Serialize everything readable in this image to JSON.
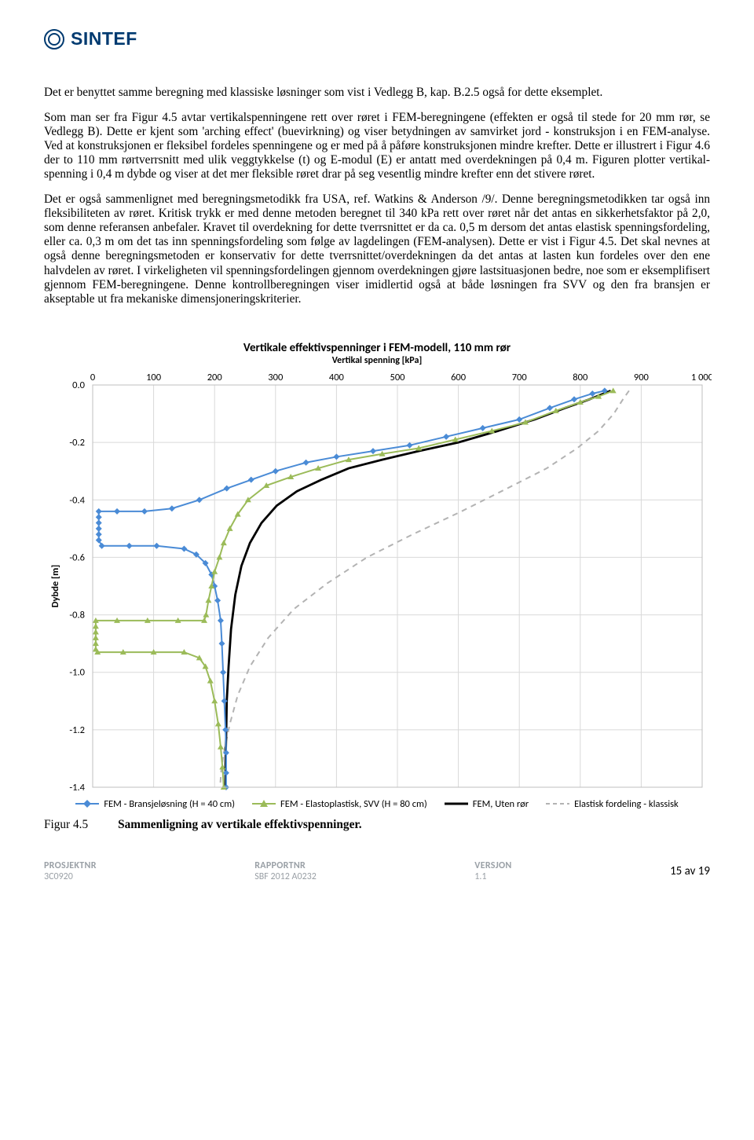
{
  "logo": {
    "text": "SINTEF",
    "color": "#003a70"
  },
  "paragraphs": {
    "p1": "Det er benyttet samme beregning med klassiske løsninger som vist i Vedlegg B, kap. B.2.5 også for dette eksemplet.",
    "p2": "Som man ser fra Figur 4.5 avtar vertikalspenningene rett over røret i FEM-beregningene (effekten er også til stede for 20 mm rør, se Vedlegg B). Dette er kjent som 'arching effect' (buevirkning) og viser betydningen av samvirket jord - konstruksjon i en FEM-analyse. Ved at konstruksjonen er fleksibel fordeles spenningene og er med på å påføre konstruksjonen mindre krefter. Dette er illustrert i Figur 4.6 der to 110 mm rørtverrsnitt med ulik veggtykkelse (t) og E-modul (E) er antatt med overdekningen på 0,4 m. Figuren plotter vertikal-spenning i 0,4 m dybde og viser at det mer fleksible røret drar på seg vesentlig mindre krefter enn det stivere røret.",
    "p3": "Det er også sammenlignet med beregningsmetodikk fra USA, ref. Watkins & Anderson /9/.  Denne beregningsmetodikken tar også inn fleksibiliteten av røret. Kritisk trykk er med denne metoden beregnet til 340 kPa rett over røret når det antas en sikkerhetsfaktor på 2,0, som denne referansen anbefaler. Kravet til overdekning for dette tverrsnittet er da ca. 0,5 m dersom det antas elastisk spenningsfordeling, eller ca. 0,3 m om det tas inn spenningsfordeling som følge av lagdelingen (FEM-analysen). Dette er vist i Figur 4.5. Det skal nevnes at også denne beregningsmetoden er konservativ for dette tverrsnittet/overdekningen da det antas at lasten kun fordeles over den ene halvdelen av røret. I virkeligheten vil spenningsfordelingen gjennom overdekningen gjøre lastsituasjonen bedre, noe som er eksemplifisert gjennom FEM-beregningene. Denne kontrollberegningen viser imidlertid også at både løsningen fra SVV og den fra bransjen er akseptable ut fra mekaniske dimensjoneringskriterier."
  },
  "chart": {
    "type": "line",
    "title": "Vertikale effektivspenninger i FEM-modell, 110 mm rør",
    "subtitle": "Vertikal spenning [kPa]",
    "ylabel": "Dybde [m]",
    "x": {
      "min": 0,
      "max": 1000,
      "step": 100,
      "ticks": [
        "0",
        "100",
        "200",
        "300",
        "400",
        "500",
        "600",
        "700",
        "800",
        "900",
        "1 000"
      ]
    },
    "y": {
      "min": -1.4,
      "max": 0.0,
      "step": 0.2,
      "ticks": [
        "0.0",
        "-0.2",
        "-0.4",
        "-0.6",
        "-0.8",
        "-1.0",
        "-1.2",
        "-1.4"
      ]
    },
    "colors": {
      "s1": "#4a8bd6",
      "s2": "#9bbb59",
      "s3": "#000000",
      "s4": "#b3b3b3",
      "grid": "#d9d9d9",
      "bg": "#ffffff"
    },
    "legend": {
      "s1": "FEM - Bransjeløsning (H = 40 cm)",
      "s2": "FEM - Elastoplastisk, SVV (H = 80 cm)",
      "s3": "FEM, Uten rør",
      "s4": "Elastisk fordeling - klassisk"
    },
    "series": {
      "s1": [
        [
          840,
          -0.02
        ],
        [
          820,
          -0.03
        ],
        [
          790,
          -0.05
        ],
        [
          750,
          -0.08
        ],
        [
          700,
          -0.12
        ],
        [
          640,
          -0.15
        ],
        [
          580,
          -0.18
        ],
        [
          520,
          -0.21
        ],
        [
          460,
          -0.23
        ],
        [
          400,
          -0.25
        ],
        [
          350,
          -0.27
        ],
        [
          300,
          -0.3
        ],
        [
          260,
          -0.33
        ],
        [
          220,
          -0.36
        ],
        [
          175,
          -0.4
        ],
        [
          130,
          -0.43
        ],
        [
          85,
          -0.44
        ],
        [
          40,
          -0.44
        ],
        [
          10,
          -0.44
        ],
        [
          10,
          -0.46
        ],
        [
          10,
          -0.48
        ],
        [
          10,
          -0.5
        ],
        [
          10,
          -0.52
        ],
        [
          10,
          -0.54
        ],
        [
          15,
          -0.56
        ],
        [
          60,
          -0.56
        ],
        [
          105,
          -0.56
        ],
        [
          150,
          -0.57
        ],
        [
          170,
          -0.59
        ],
        [
          185,
          -0.62
        ],
        [
          195,
          -0.66
        ],
        [
          200,
          -0.7
        ],
        [
          205,
          -0.75
        ],
        [
          210,
          -0.82
        ],
        [
          212,
          -0.9
        ],
        [
          214,
          -1.0
        ],
        [
          216,
          -1.1
        ],
        [
          218,
          -1.2
        ],
        [
          219,
          -1.28
        ],
        [
          219,
          -1.35
        ],
        [
          219,
          -1.4
        ]
      ],
      "s2": [
        [
          854,
          -0.02
        ],
        [
          830,
          -0.04
        ],
        [
          800,
          -0.06
        ],
        [
          760,
          -0.09
        ],
        [
          710,
          -0.13
        ],
        [
          655,
          -0.16
        ],
        [
          595,
          -0.19
        ],
        [
          535,
          -0.22
        ],
        [
          475,
          -0.24
        ],
        [
          420,
          -0.26
        ],
        [
          370,
          -0.29
        ],
        [
          325,
          -0.32
        ],
        [
          285,
          -0.35
        ],
        [
          255,
          -0.4
        ],
        [
          238,
          -0.45
        ],
        [
          225,
          -0.5
        ],
        [
          215,
          -0.55
        ],
        [
          208,
          -0.6
        ],
        [
          200,
          -0.65
        ],
        [
          195,
          -0.7
        ],
        [
          190,
          -0.75
        ],
        [
          186,
          -0.8
        ],
        [
          183,
          -0.82
        ],
        [
          140,
          -0.82
        ],
        [
          90,
          -0.82
        ],
        [
          40,
          -0.82
        ],
        [
          5,
          -0.82
        ],
        [
          5,
          -0.84
        ],
        [
          5,
          -0.86
        ],
        [
          5,
          -0.88
        ],
        [
          5,
          -0.9
        ],
        [
          5,
          -0.92
        ],
        [
          8,
          -0.93
        ],
        [
          50,
          -0.93
        ],
        [
          100,
          -0.93
        ],
        [
          150,
          -0.93
        ],
        [
          175,
          -0.95
        ],
        [
          185,
          -0.98
        ],
        [
          193,
          -1.03
        ],
        [
          200,
          -1.1
        ],
        [
          206,
          -1.18
        ],
        [
          210,
          -1.26
        ],
        [
          213,
          -1.33
        ],
        [
          215,
          -1.4
        ]
      ],
      "s3": [
        [
          850,
          -0.02
        ],
        [
          815,
          -0.05
        ],
        [
          775,
          -0.08
        ],
        [
          725,
          -0.12
        ],
        [
          665,
          -0.16
        ],
        [
          600,
          -0.2
        ],
        [
          535,
          -0.23
        ],
        [
          475,
          -0.26
        ],
        [
          420,
          -0.29
        ],
        [
          375,
          -0.33
        ],
        [
          335,
          -0.37
        ],
        [
          302,
          -0.42
        ],
        [
          277,
          -0.48
        ],
        [
          258,
          -0.55
        ],
        [
          244,
          -0.63
        ],
        [
          234,
          -0.73
        ],
        [
          227,
          -0.85
        ],
        [
          223,
          -0.98
        ],
        [
          220,
          -1.1
        ],
        [
          219,
          -1.22
        ],
        [
          218,
          -1.32
        ],
        [
          218,
          -1.4
        ]
      ],
      "s4": [
        [
          880,
          -0.02
        ],
        [
          870,
          -0.05
        ],
        [
          855,
          -0.1
        ],
        [
          830,
          -0.16
        ],
        [
          795,
          -0.22
        ],
        [
          745,
          -0.29
        ],
        [
          680,
          -0.36
        ],
        [
          605,
          -0.44
        ],
        [
          525,
          -0.52
        ],
        [
          450,
          -0.6
        ],
        [
          385,
          -0.69
        ],
        [
          330,
          -0.78
        ],
        [
          288,
          -0.88
        ],
        [
          258,
          -0.98
        ],
        [
          238,
          -1.08
        ],
        [
          225,
          -1.18
        ],
        [
          216,
          -1.27
        ],
        [
          211,
          -1.34
        ],
        [
          209,
          -1.4
        ]
      ]
    },
    "marker": {
      "s1": "diamond",
      "s2": "triangle",
      "s3": "none",
      "s4": "none"
    },
    "line": {
      "s1": "solid",
      "s2": "solid",
      "s3": "solid",
      "s4": "dashed",
      "s3_width": 2.8
    }
  },
  "figcaption": {
    "label": "Figur 4.5",
    "text": "Sammenligning av vertikale effektivspenninger."
  },
  "footer": {
    "c1_label": "PROSJEKTNR",
    "c1_val": "3C0920",
    "c2_label": "RAPPORTNR",
    "c2_val": "SBF 2012 A0232",
    "c3_label": "VERSJON",
    "c3_val": "1.1",
    "page": "15 av 19"
  }
}
